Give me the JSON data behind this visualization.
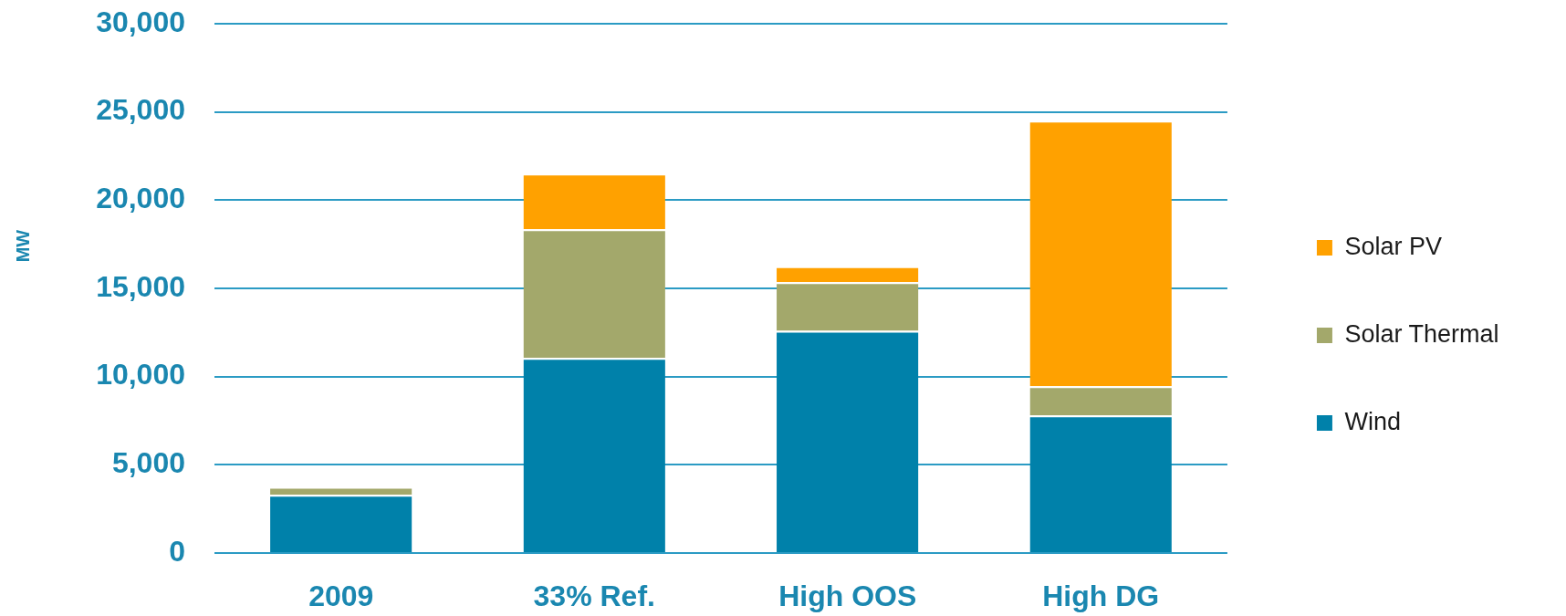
{
  "chart_data": {
    "type": "bar",
    "ylabel": "MW",
    "categories": [
      "2009",
      "33% Ref.",
      "High OOS",
      "High DG"
    ],
    "series": [
      {
        "name": "Wind",
        "color": "#0081aa",
        "values": [
          3300,
          11050,
          12600,
          7800
        ]
      },
      {
        "name": "Solar Thermal",
        "color": "#a3a86b",
        "values": [
          450,
          7300,
          2750,
          1650
        ]
      },
      {
        "name": "Solar PV",
        "color": "#ffa100",
        "values": [
          0,
          3150,
          900,
          15050
        ]
      }
    ],
    "stacked": true,
    "ylim": [
      0,
      30000
    ],
    "yticks": [
      0,
      {
        "value": 5000,
        "label": "5,000"
      },
      {
        "value": 10000,
        "label": "10,000"
      },
      {
        "value": 15000,
        "label": "15,000"
      },
      {
        "value": 20000,
        "label": "20,000"
      },
      {
        "value": 25000,
        "label": "25,000"
      },
      {
        "value": 30000,
        "label": "30,000"
      }
    ],
    "grid": "y",
    "legend": "right"
  }
}
